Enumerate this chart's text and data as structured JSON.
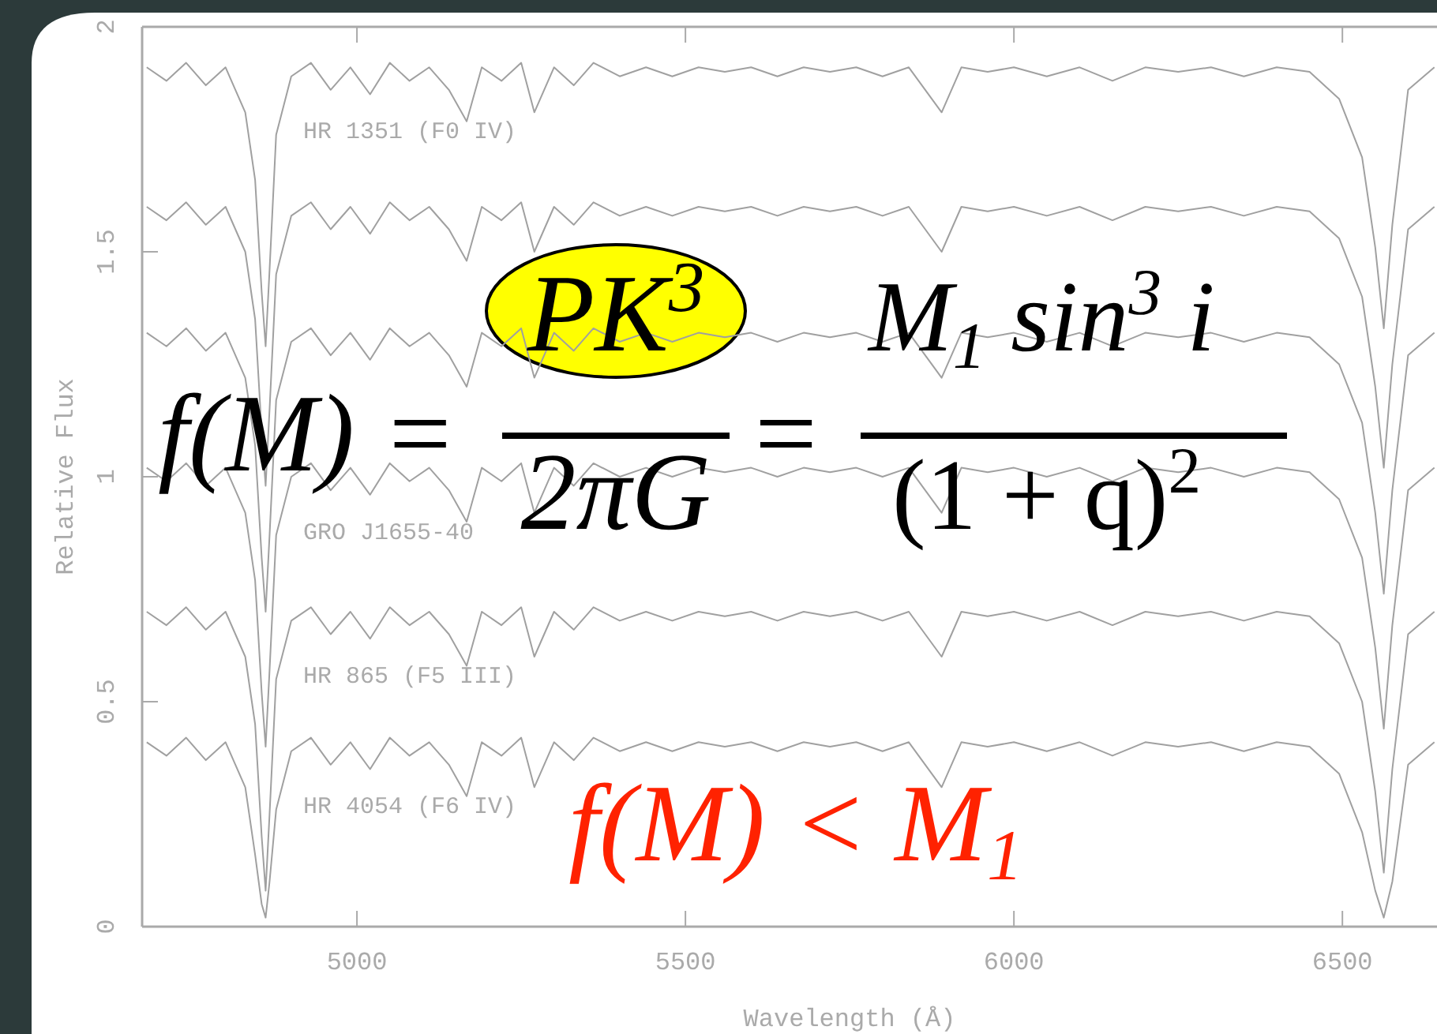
{
  "chart_data": {
    "type": "line",
    "xlabel": "Wavelength (Å)",
    "ylabel": "Relative Flux",
    "xlim": [
      4673,
      6644
    ],
    "xticks": [
      5000,
      5500,
      6000,
      6500
    ],
    "ylim": [
      0,
      2
    ],
    "yticks": [
      0,
      0.5,
      1,
      1.5,
      2
    ],
    "grid": false,
    "legend": false,
    "marker": "none",
    "line_style": "solid",
    "x": [
      4680,
      4710,
      4740,
      4770,
      4800,
      4830,
      4845,
      4855,
      4861,
      4867,
      4877,
      4900,
      4930,
      4960,
      4990,
      5020,
      5050,
      5080,
      5110,
      5140,
      5167,
      5190,
      5220,
      5250,
      5270,
      5300,
      5330,
      5360,
      5400,
      5440,
      5480,
      5520,
      5560,
      5600,
      5640,
      5680,
      5720,
      5760,
      5800,
      5840,
      5890,
      5920,
      5960,
      6000,
      6050,
      6100,
      6150,
      6200,
      6250,
      6300,
      6350,
      6400,
      6450,
      6495,
      6530,
      6550,
      6563,
      6576,
      6600,
      6640
    ],
    "series": [
      {
        "name": "HR 1351 (F0 IV)",
        "color": "#a0a0a0",
        "values": [
          1.91,
          1.88,
          1.92,
          1.87,
          1.91,
          1.81,
          1.66,
          1.41,
          1.29,
          1.46,
          1.76,
          1.89,
          1.92,
          1.86,
          1.91,
          1.85,
          1.92,
          1.88,
          1.91,
          1.86,
          1.79,
          1.91,
          1.88,
          1.92,
          1.81,
          1.91,
          1.87,
          1.92,
          1.89,
          1.91,
          1.89,
          1.91,
          1.9,
          1.91,
          1.89,
          1.91,
          1.9,
          1.91,
          1.89,
          1.91,
          1.81,
          1.91,
          1.9,
          1.91,
          1.89,
          1.91,
          1.88,
          1.91,
          1.9,
          1.91,
          1.89,
          1.91,
          1.9,
          1.84,
          1.71,
          1.51,
          1.33,
          1.56,
          1.86,
          1.91
        ]
      },
      {
        "color": "#a0a0a0",
        "values": [
          1.6,
          1.57,
          1.61,
          1.56,
          1.6,
          1.5,
          1.35,
          1.1,
          0.98,
          1.15,
          1.45,
          1.58,
          1.61,
          1.55,
          1.6,
          1.54,
          1.61,
          1.57,
          1.6,
          1.55,
          1.48,
          1.6,
          1.57,
          1.61,
          1.5,
          1.6,
          1.56,
          1.61,
          1.58,
          1.6,
          1.58,
          1.6,
          1.59,
          1.6,
          1.58,
          1.6,
          1.59,
          1.6,
          1.58,
          1.6,
          1.5,
          1.6,
          1.59,
          1.6,
          1.58,
          1.6,
          1.57,
          1.6,
          1.59,
          1.6,
          1.58,
          1.6,
          1.59,
          1.53,
          1.4,
          1.2,
          1.02,
          1.25,
          1.55,
          1.6
        ]
      },
      {
        "color": "#a0a0a0",
        "values": [
          1.32,
          1.29,
          1.33,
          1.28,
          1.32,
          1.22,
          1.07,
          0.82,
          0.7,
          0.87,
          1.17,
          1.3,
          1.33,
          1.27,
          1.32,
          1.26,
          1.33,
          1.29,
          1.32,
          1.27,
          1.2,
          1.32,
          1.29,
          1.33,
          1.22,
          1.32,
          1.28,
          1.33,
          1.3,
          1.32,
          1.3,
          1.32,
          1.31,
          1.32,
          1.3,
          1.32,
          1.31,
          1.32,
          1.3,
          1.32,
          1.22,
          1.32,
          1.31,
          1.32,
          1.3,
          1.32,
          1.29,
          1.32,
          1.31,
          1.32,
          1.3,
          1.32,
          1.31,
          1.25,
          1.12,
          0.92,
          0.74,
          0.97,
          1.27,
          1.32
        ]
      },
      {
        "name": "GRO J1655-40",
        "color": "#a0a0a0",
        "values": [
          1.02,
          0.99,
          1.03,
          0.98,
          1.02,
          0.92,
          0.77,
          0.52,
          0.4,
          0.57,
          0.87,
          1.0,
          1.03,
          0.97,
          1.02,
          0.96,
          1.03,
          0.99,
          1.02,
          0.97,
          0.9,
          1.02,
          0.99,
          1.03,
          0.92,
          1.02,
          0.98,
          1.03,
          1.0,
          1.02,
          1.0,
          1.02,
          1.01,
          1.02,
          1.0,
          1.02,
          1.01,
          1.02,
          1.0,
          1.02,
          0.92,
          1.02,
          1.01,
          1.02,
          1.0,
          1.02,
          0.99,
          1.02,
          1.01,
          1.02,
          1.0,
          1.02,
          1.01,
          0.95,
          0.82,
          0.62,
          0.44,
          0.67,
          0.97,
          1.02
        ]
      },
      {
        "name": "HR 865 (F5 III)",
        "color": "#a0a0a0",
        "values": [
          0.7,
          0.67,
          0.71,
          0.66,
          0.7,
          0.6,
          0.45,
          0.2,
          0.08,
          0.25,
          0.55,
          0.68,
          0.71,
          0.65,
          0.7,
          0.64,
          0.71,
          0.67,
          0.7,
          0.65,
          0.58,
          0.7,
          0.67,
          0.71,
          0.6,
          0.7,
          0.66,
          0.71,
          0.68,
          0.7,
          0.68,
          0.7,
          0.69,
          0.7,
          0.68,
          0.7,
          0.69,
          0.7,
          0.68,
          0.7,
          0.6,
          0.7,
          0.69,
          0.7,
          0.68,
          0.7,
          0.67,
          0.7,
          0.69,
          0.7,
          0.68,
          0.7,
          0.69,
          0.63,
          0.5,
          0.3,
          0.12,
          0.35,
          0.65,
          0.7
        ]
      },
      {
        "name": "HR 4054 (F6 IV)",
        "color": "#a0a0a0",
        "values": [
          0.41,
          0.38,
          0.42,
          0.37,
          0.41,
          0.31,
          0.16,
          0.05,
          0.02,
          0.1,
          0.26,
          0.39,
          0.42,
          0.36,
          0.41,
          0.35,
          0.42,
          0.38,
          0.41,
          0.36,
          0.29,
          0.41,
          0.38,
          0.42,
          0.31,
          0.41,
          0.37,
          0.42,
          0.39,
          0.41,
          0.39,
          0.41,
          0.4,
          0.41,
          0.39,
          0.41,
          0.4,
          0.41,
          0.39,
          0.41,
          0.31,
          0.41,
          0.4,
          0.41,
          0.39,
          0.41,
          0.38,
          0.41,
          0.4,
          0.41,
          0.39,
          0.41,
          0.4,
          0.34,
          0.21,
          0.08,
          0.02,
          0.1,
          0.36,
          0.41
        ]
      }
    ],
    "annotations": [
      "f(M) =",
      "PK$^{3}$",
      "2πG",
      "=",
      "M$_{1}$ sin$^{3}$ i",
      "(1 + q)$^{2}$",
      "f(M) < M$_{1}$"
    ]
  }
}
